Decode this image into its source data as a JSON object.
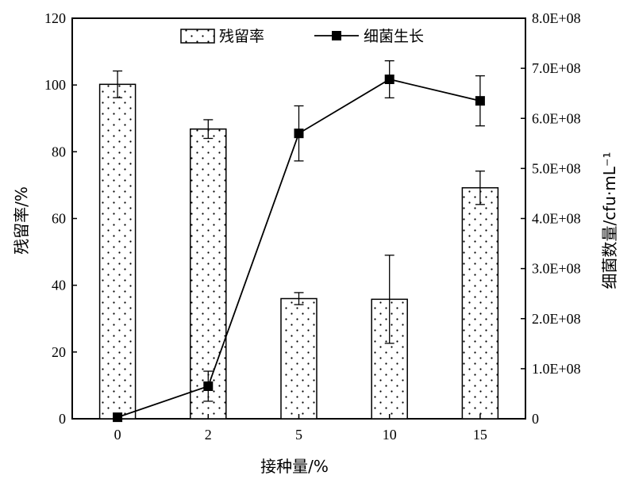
{
  "chart_data": {
    "type": "bar",
    "categories": [
      "0",
      "2",
      "5",
      "10",
      "15"
    ],
    "xlabel": "接种量/%",
    "ylabel_left": "残留率/%",
    "ylabel_right": "细菌数量/cfu·mL⁻¹",
    "ylim_left": [
      0,
      120
    ],
    "yticks_left": [
      0,
      20,
      40,
      60,
      80,
      100,
      120
    ],
    "ytick_labels_left": [
      "0",
      "20",
      "40",
      "60",
      "80",
      "100",
      "120"
    ],
    "ylim_right": [
      0,
      800000000
    ],
    "yticks_right": [
      0,
      100000000,
      200000000,
      300000000,
      400000000,
      500000000,
      600000000,
      700000000,
      800000000
    ],
    "ytick_labels_right": [
      "0",
      "1.0E+08",
      "2.0E+08",
      "3.0E+08",
      "4.0E+08",
      "5.0E+08",
      "6.0E+08",
      "7.0E+08",
      "8.0E+08"
    ],
    "legend_position": "top",
    "grid": false,
    "series": [
      {
        "name": "残留率",
        "type": "bar",
        "axis": "left",
        "values": [
          100.2,
          86.8,
          36,
          35.8,
          69.2
        ],
        "errors": [
          4,
          2.8,
          1.8,
          13.2,
          5
        ]
      },
      {
        "name": "细菌生长",
        "type": "line",
        "axis": "right",
        "marker": "square",
        "values": [
          3000000,
          65000000,
          570000000,
          678000000,
          635000000
        ],
        "errors": [
          0,
          30000000,
          55000000,
          37000000,
          50000000
        ]
      }
    ]
  }
}
